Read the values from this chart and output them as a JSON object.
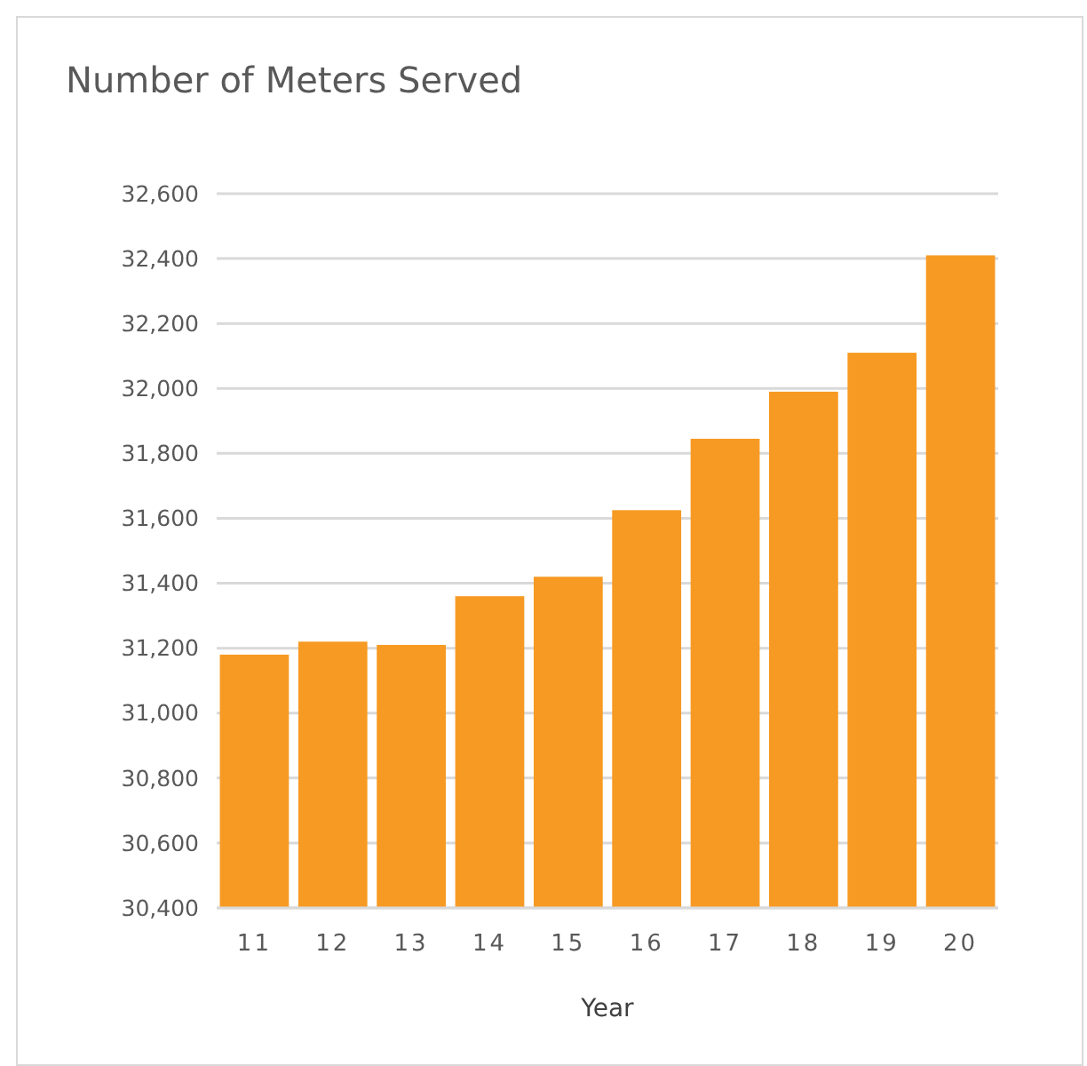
{
  "chart_data": {
    "type": "bar",
    "title": "Number of Meters Served",
    "xlabel": "Year",
    "categories": [
      "11",
      "12",
      "13",
      "14",
      "15",
      "16",
      "17",
      "18",
      "19",
      "20"
    ],
    "values": [
      31180,
      31220,
      31210,
      31360,
      31420,
      31625,
      31845,
      31990,
      32110,
      32410
    ],
    "color": "#f79a23",
    "ylim": [
      30400,
      32600
    ],
    "yticks": [
      {
        "value": 30400,
        "label": "30,400"
      },
      {
        "value": 30600,
        "label": "30,600"
      },
      {
        "value": 30800,
        "label": "30,800"
      },
      {
        "value": 31000,
        "label": "31,000"
      },
      {
        "value": 31200,
        "label": "31,200"
      },
      {
        "value": 31400,
        "label": "31,400"
      },
      {
        "value": 31600,
        "label": "31,600"
      },
      {
        "value": 31800,
        "label": "31,800"
      },
      {
        "value": 32000,
        "label": "32,000"
      },
      {
        "value": 32200,
        "label": "32,200"
      },
      {
        "value": 32400,
        "label": "32,400"
      },
      {
        "value": 32600,
        "label": "32,600"
      }
    ],
    "grid": "y"
  }
}
